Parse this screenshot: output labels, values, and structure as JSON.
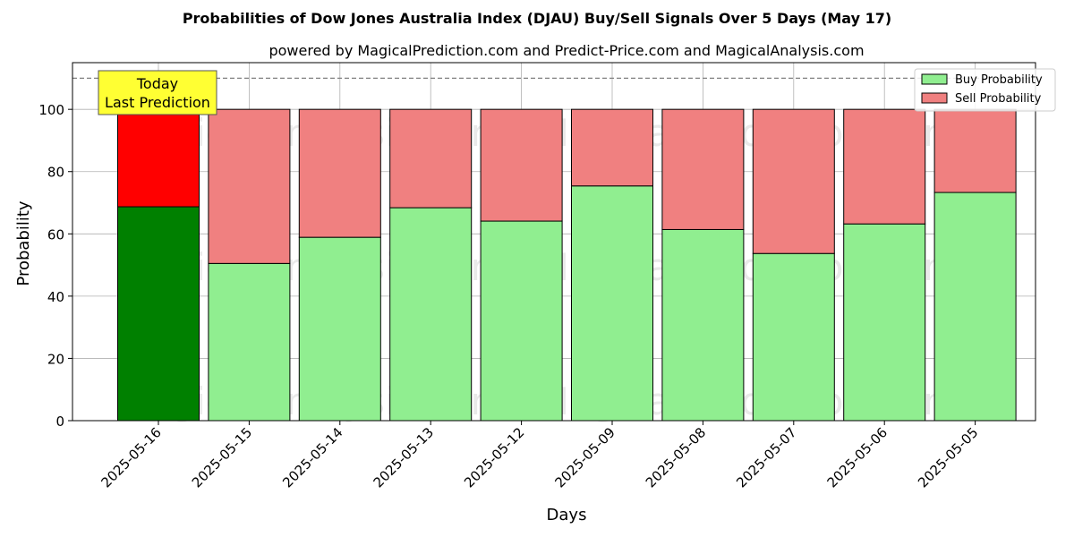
{
  "chart_data": {
    "type": "bar",
    "stacked": true,
    "title": "Probabilities of Dow Jones Australia Index (DJAU) Buy/Sell Signals Over 5 Days (May 17)",
    "subtitle": "powered by MagicalPrediction.com and Predict-Price.com and MagicalAnalysis.com",
    "xlabel": "Days",
    "ylabel": "Probability",
    "ylim": [
      0,
      115
    ],
    "yticks": [
      0,
      20,
      40,
      60,
      80,
      100
    ],
    "grid": true,
    "legend_position": "top-right",
    "reference_line": 110,
    "categories": [
      "2025-05-16",
      "2025-05-15",
      "2025-05-14",
      "2025-05-13",
      "2025-05-12",
      "2025-05-09",
      "2025-05-08",
      "2025-05-07",
      "2025-05-06",
      "2025-05-05"
    ],
    "series": [
      {
        "name": "Buy Probability",
        "color": "#90ee90",
        "highlight_color": "#008000",
        "values": [
          68.7,
          50.5,
          58.9,
          68.4,
          64.1,
          75.4,
          61.4,
          53.7,
          63.2,
          73.3
        ]
      },
      {
        "name": "Sell Probability",
        "color": "#f08080",
        "highlight_color": "#ff0000",
        "values": [
          31.3,
          49.5,
          41.1,
          31.6,
          35.9,
          24.6,
          38.6,
          46.3,
          36.8,
          26.7
        ]
      }
    ],
    "annotation": {
      "lines": [
        "Today",
        "Last Prediction"
      ],
      "background": "#ffff33"
    },
    "watermarks": [
      "MagicalAnalysis.com",
      "MagicalPrediction.com"
    ]
  }
}
